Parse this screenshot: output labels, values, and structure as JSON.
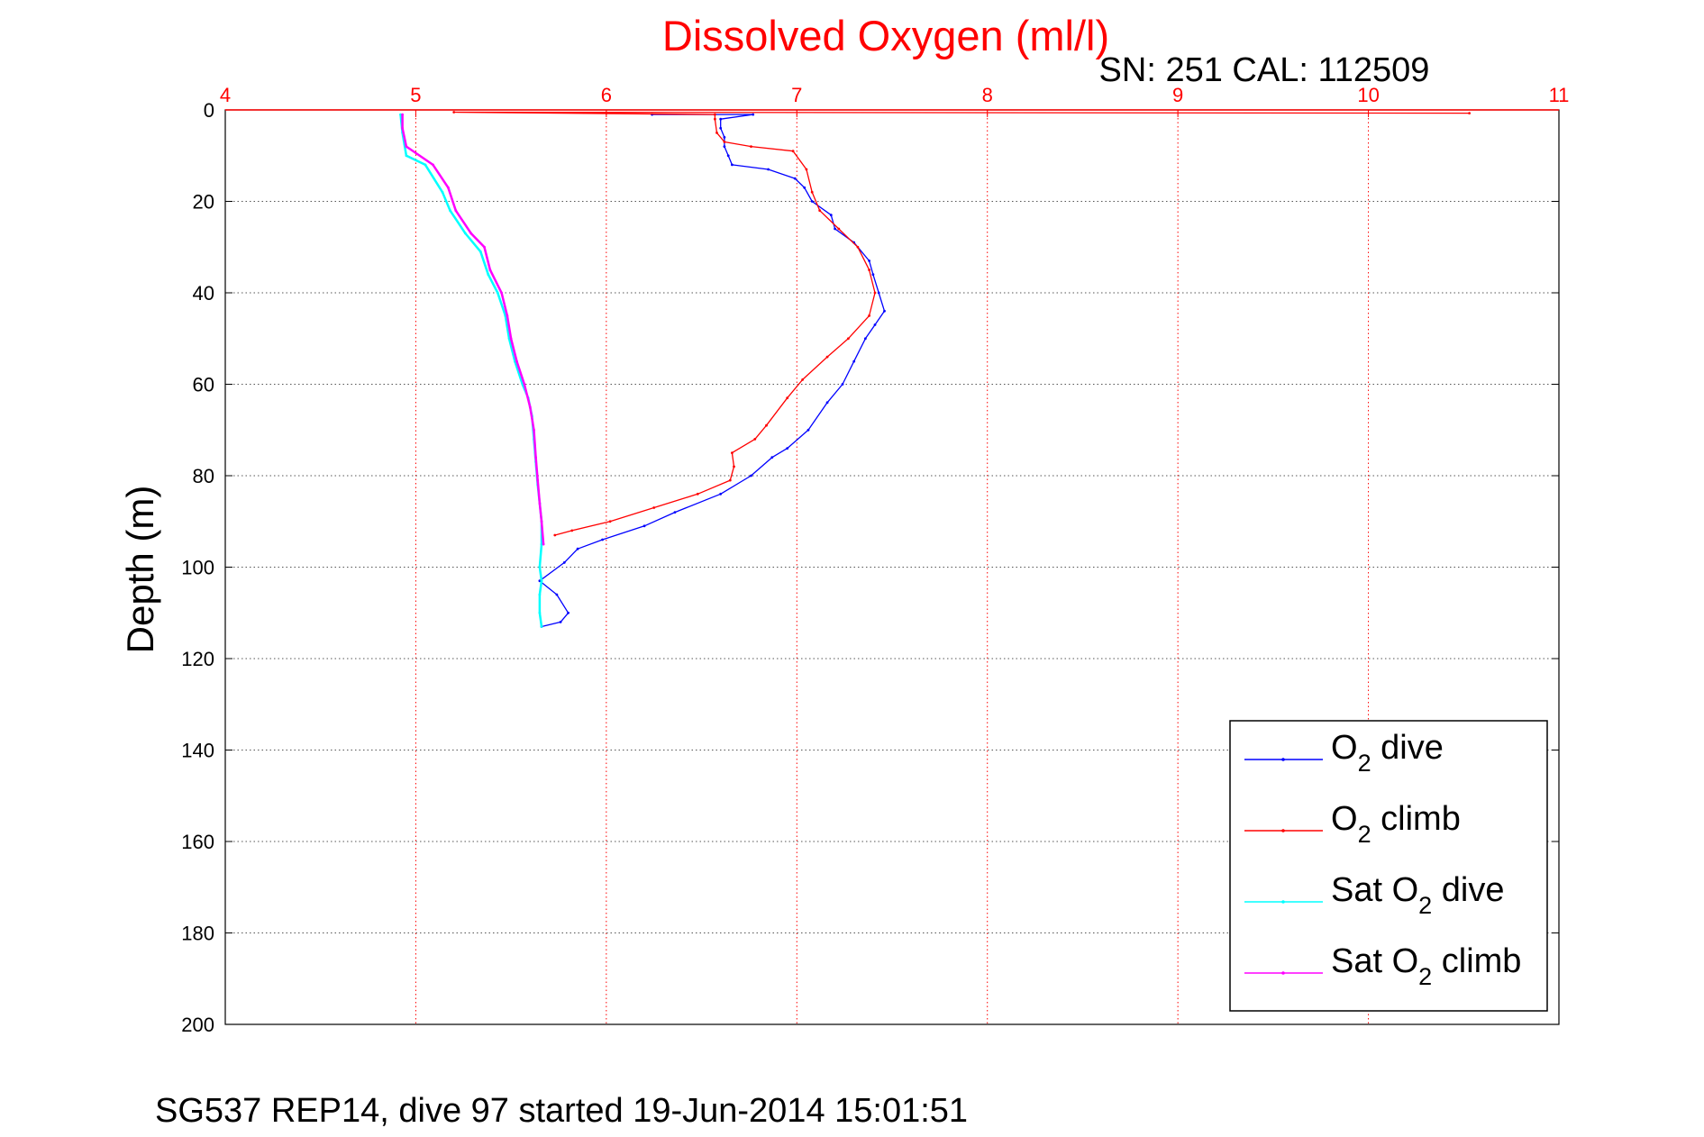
{
  "chart_data": {
    "type": "line",
    "title": "Dissolved Oxygen (ml/l)",
    "subtitle": "SN: 251  CAL: 112509",
    "xlabel": "",
    "ylabel": "Depth (m)",
    "caption": "SG537 REP14, dive 97 started 19-Jun-2014 15:01:51",
    "x_axis_position": "top",
    "x_ticks": [
      "4",
      "5",
      "6",
      "7",
      "8",
      "9",
      "10",
      "11"
    ],
    "y_ticks": [
      "0",
      "20",
      "40",
      "60",
      "80",
      "100",
      "120",
      "140",
      "160",
      "180",
      "200"
    ],
    "xlim": [
      4,
      11
    ],
    "ylim": [
      200,
      0
    ],
    "y_reversed": true,
    "grid": true,
    "legend_position": "bottom-right",
    "colors": {
      "title": "#ff0000",
      "x_ticks": "#ff0000",
      "axes": "#000000",
      "grid": "#555555",
      "x_grid": "#ff0000"
    },
    "legend": [
      {
        "base": "O",
        "sub": "2",
        "rest": " dive",
        "color": "#0000ff"
      },
      {
        "base": "O",
        "sub": "2",
        "rest": " climb",
        "color": "#ff0000"
      },
      {
        "base": "Sat O",
        "sub": "2",
        "rest": " dive",
        "color": "#00ffff"
      },
      {
        "base": "Sat O",
        "sub": "2",
        "rest": " climb",
        "color": "#ff00ff"
      }
    ],
    "series": [
      {
        "name": "O2 dive",
        "color": "#0000ff",
        "points": [
          [
            6.24,
            1
          ],
          [
            6.77,
            1
          ],
          [
            6.6,
            2
          ],
          [
            6.6,
            4
          ],
          [
            6.62,
            6
          ],
          [
            6.62,
            8
          ],
          [
            6.64,
            10
          ],
          [
            6.66,
            12
          ],
          [
            6.85,
            13
          ],
          [
            6.99,
            15
          ],
          [
            7.04,
            17
          ],
          [
            7.08,
            20
          ],
          [
            7.18,
            23
          ],
          [
            7.2,
            26
          ],
          [
            7.3,
            29
          ],
          [
            7.38,
            33
          ],
          [
            7.4,
            36
          ],
          [
            7.43,
            40
          ],
          [
            7.46,
            44
          ],
          [
            7.41,
            47
          ],
          [
            7.36,
            50
          ],
          [
            7.3,
            55
          ],
          [
            7.24,
            60
          ],
          [
            7.16,
            64
          ],
          [
            7.06,
            70
          ],
          [
            6.95,
            74
          ],
          [
            6.87,
            76
          ],
          [
            6.76,
            80
          ],
          [
            6.6,
            84
          ],
          [
            6.36,
            88
          ],
          [
            6.2,
            91
          ],
          [
            5.98,
            94
          ],
          [
            5.85,
            96
          ],
          [
            5.78,
            99
          ],
          [
            5.65,
            103
          ],
          [
            5.74,
            106
          ],
          [
            5.8,
            110
          ],
          [
            5.76,
            112
          ],
          [
            5.66,
            113
          ]
        ]
      },
      {
        "name": "O2 climb",
        "color": "#ff0000",
        "points": [
          [
            5.73,
            93
          ],
          [
            5.82,
            92
          ],
          [
            6.02,
            90
          ],
          [
            6.25,
            87
          ],
          [
            6.48,
            84
          ],
          [
            6.65,
            81
          ],
          [
            6.67,
            78
          ],
          [
            6.66,
            75
          ],
          [
            6.78,
            72
          ],
          [
            6.84,
            69
          ],
          [
            6.95,
            63
          ],
          [
            7.03,
            59
          ],
          [
            7.16,
            54
          ],
          [
            7.27,
            50
          ],
          [
            7.38,
            45
          ],
          [
            7.41,
            40
          ],
          [
            7.38,
            35
          ],
          [
            7.32,
            30
          ],
          [
            7.22,
            26
          ],
          [
            7.12,
            22
          ],
          [
            7.08,
            18
          ],
          [
            7.05,
            13
          ],
          [
            6.98,
            9
          ],
          [
            6.76,
            8
          ],
          [
            6.62,
            7
          ],
          [
            6.58,
            5
          ],
          [
            6.57,
            2
          ],
          [
            6.57,
            1
          ],
          [
            5.2,
            0.5
          ],
          [
            10.53,
            0.7
          ]
        ]
      },
      {
        "name": "Sat O2 dive",
        "color": "#00ffff",
        "points": [
          [
            4.92,
            1
          ],
          [
            4.93,
            5
          ],
          [
            4.95,
            10
          ],
          [
            5.05,
            12
          ],
          [
            5.14,
            18
          ],
          [
            5.18,
            22
          ],
          [
            5.26,
            27
          ],
          [
            5.34,
            31
          ],
          [
            5.38,
            36
          ],
          [
            5.43,
            40
          ],
          [
            5.47,
            45
          ],
          [
            5.49,
            50
          ],
          [
            5.52,
            55
          ],
          [
            5.56,
            60
          ],
          [
            5.59,
            63
          ],
          [
            5.61,
            67
          ],
          [
            5.62,
            72
          ],
          [
            5.63,
            77
          ],
          [
            5.64,
            82
          ],
          [
            5.65,
            86
          ],
          [
            5.66,
            90
          ],
          [
            5.66,
            95
          ],
          [
            5.65,
            100
          ],
          [
            5.66,
            103
          ],
          [
            5.65,
            106
          ],
          [
            5.65,
            110
          ],
          [
            5.66,
            113
          ]
        ]
      },
      {
        "name": "Sat O2 climb",
        "color": "#ff00ff",
        "points": [
          [
            5.67,
            95
          ],
          [
            5.66,
            90
          ],
          [
            5.65,
            86
          ],
          [
            5.64,
            81
          ],
          [
            5.63,
            76
          ],
          [
            5.62,
            70
          ],
          [
            5.6,
            65
          ],
          [
            5.57,
            60
          ],
          [
            5.53,
            55
          ],
          [
            5.5,
            50
          ],
          [
            5.48,
            45
          ],
          [
            5.45,
            40
          ],
          [
            5.39,
            35
          ],
          [
            5.36,
            30
          ],
          [
            5.29,
            27
          ],
          [
            5.21,
            22
          ],
          [
            5.17,
            17
          ],
          [
            5.09,
            12
          ],
          [
            4.95,
            8
          ],
          [
            4.93,
            4
          ],
          [
            4.93,
            1
          ]
        ]
      }
    ]
  }
}
